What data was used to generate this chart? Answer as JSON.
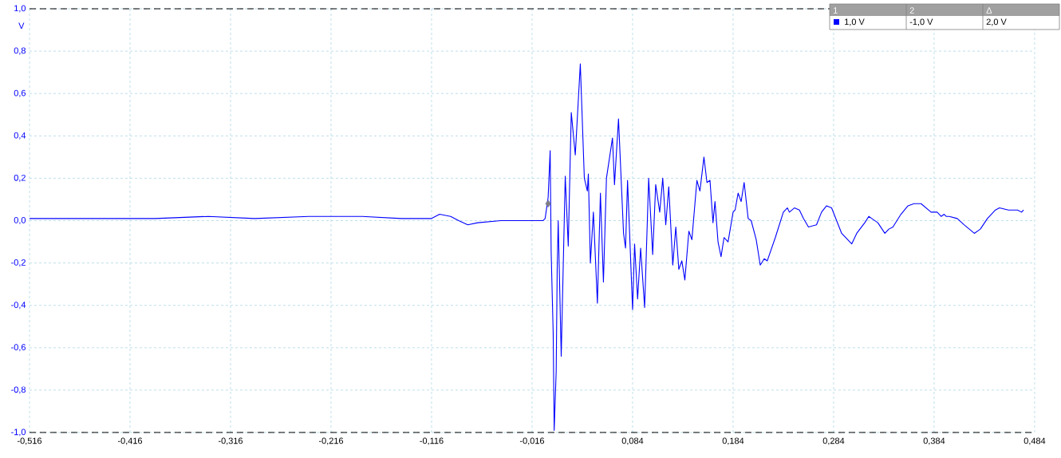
{
  "chart_data": {
    "type": "line",
    "ylabel": "V",
    "xlim": [
      -0.516,
      0.484
    ],
    "ylim": [
      -1.0,
      1.0
    ],
    "xticks": [
      {
        "value": -0.516,
        "label": "-0,516"
      },
      {
        "value": -0.416,
        "label": "-0,416"
      },
      {
        "value": -0.316,
        "label": "-0,316"
      },
      {
        "value": -0.216,
        "label": "-0,216"
      },
      {
        "value": -0.116,
        "label": "-0,116"
      },
      {
        "value": -0.016,
        "label": "-0,016"
      },
      {
        "value": 0.084,
        "label": "0,084"
      },
      {
        "value": 0.184,
        "label": "0,184"
      },
      {
        "value": 0.284,
        "label": "0,284"
      },
      {
        "value": 0.384,
        "label": "0,384"
      },
      {
        "value": 0.484,
        "label": "0,484"
      }
    ],
    "yticks": [
      {
        "value": -1.0,
        "label": "-1,0"
      },
      {
        "value": -0.8,
        "label": "-0,8"
      },
      {
        "value": -0.6,
        "label": "-0,6"
      },
      {
        "value": -0.4,
        "label": "-0,4"
      },
      {
        "value": -0.2,
        "label": "-0,2"
      },
      {
        "value": 0.0,
        "label": "0,0"
      },
      {
        "value": 0.2,
        "label": "0,2"
      },
      {
        "value": 0.4,
        "label": "0,4"
      },
      {
        "value": 0.6,
        "label": "0,6"
      },
      {
        "value": 0.8,
        "label": "0,8"
      },
      {
        "value": 1.0,
        "label": "1,0"
      }
    ],
    "grid": true,
    "series": [
      {
        "color": "#0000ff",
        "x": [
          -0.516,
          -0.468,
          -0.391,
          -0.338,
          -0.292,
          -0.238,
          -0.185,
          -0.146,
          -0.116,
          -0.108,
          -0.097,
          -0.089,
          -0.08,
          -0.07,
          -0.047,
          -0.017,
          -0.005,
          -0.003,
          0.0,
          0.002,
          0.003,
          0.005,
          0.006,
          0.008,
          0.009,
          0.01,
          0.013,
          0.017,
          0.02,
          0.023,
          0.027,
          0.032,
          0.036,
          0.039,
          0.04,
          0.042,
          0.045,
          0.049,
          0.052,
          0.055,
          0.058,
          0.064,
          0.066,
          0.07,
          0.075,
          0.077,
          0.079,
          0.084,
          0.086,
          0.089,
          0.092,
          0.096,
          0.1,
          0.104,
          0.107,
          0.111,
          0.114,
          0.117,
          0.12,
          0.124,
          0.127,
          0.13,
          0.133,
          0.136,
          0.14,
          0.143,
          0.148,
          0.151,
          0.155,
          0.158,
          0.161,
          0.164,
          0.166,
          0.169,
          0.172,
          0.175,
          0.179,
          0.184,
          0.186,
          0.189,
          0.192,
          0.195,
          0.199,
          0.202,
          0.207,
          0.211,
          0.215,
          0.218,
          0.226,
          0.234,
          0.238,
          0.24,
          0.245,
          0.25,
          0.254,
          0.259,
          0.267,
          0.272,
          0.277,
          0.282,
          0.292,
          0.302,
          0.307,
          0.315,
          0.319,
          0.322,
          0.328,
          0.335,
          0.339,
          0.343,
          0.351,
          0.358,
          0.364,
          0.371,
          0.381,
          0.387,
          0.391,
          0.394,
          0.396,
          0.399,
          0.407,
          0.414,
          0.424,
          0.43,
          0.437,
          0.445,
          0.449,
          0.458,
          0.467,
          0.471,
          0.473
        ],
        "values": [
          0.01,
          0.01,
          0.01,
          0.02,
          0.01,
          0.02,
          0.02,
          0.01,
          0.01,
          0.03,
          0.02,
          0.0,
          -0.02,
          -0.01,
          0.0,
          0.0,
          0.0,
          0.01,
          0.11,
          0.33,
          -0.15,
          -0.53,
          -0.99,
          -0.71,
          -0.23,
          0.0,
          -0.64,
          0.21,
          -0.12,
          0.51,
          0.31,
          0.74,
          0.2,
          0.14,
          0.22,
          -0.2,
          0.04,
          -0.39,
          0.13,
          -0.29,
          0.2,
          0.39,
          0.17,
          0.48,
          -0.06,
          -0.13,
          0.19,
          -0.42,
          -0.11,
          -0.37,
          -0.13,
          -0.41,
          0.2,
          -0.16,
          0.17,
          0.04,
          0.2,
          -0.02,
          0.16,
          -0.21,
          -0.03,
          -0.23,
          -0.19,
          -0.28,
          -0.05,
          -0.09,
          0.19,
          0.14,
          0.3,
          0.18,
          0.19,
          -0.01,
          0.09,
          -0.1,
          -0.17,
          -0.08,
          -0.1,
          0.04,
          0.05,
          0.13,
          0.09,
          0.18,
          0.01,
          0.0,
          -0.09,
          -0.21,
          -0.18,
          -0.19,
          -0.08,
          0.04,
          0.06,
          0.04,
          0.06,
          0.05,
          0.01,
          -0.03,
          -0.02,
          0.04,
          0.07,
          0.06,
          -0.06,
          -0.11,
          -0.06,
          -0.01,
          0.02,
          0.01,
          -0.01,
          -0.06,
          -0.04,
          -0.03,
          0.03,
          0.07,
          0.08,
          0.08,
          0.04,
          0.04,
          0.02,
          0.03,
          0.02,
          0.02,
          0.01,
          -0.02,
          -0.06,
          -0.04,
          0.01,
          0.05,
          0.06,
          0.05,
          0.05,
          0.04,
          0.05
        ]
      },
      {
        "type": "scatter",
        "color": "#808080",
        "marker": "diamond",
        "x": [
          0.0
        ],
        "values": [
          0.08
        ]
      }
    ],
    "ref_lines": [
      {
        "axis": "y",
        "value": 1.0,
        "label": null,
        "color": "#000000",
        "line_style": "dashed"
      },
      {
        "axis": "y",
        "value": -1.0,
        "label": null,
        "color": "#000000",
        "line_style": "dashed"
      }
    ],
    "annotations": [
      "1",
      "2",
      "Δ",
      "1,0 V",
      "-1,0 V",
      "2,0 V"
    ]
  }
}
